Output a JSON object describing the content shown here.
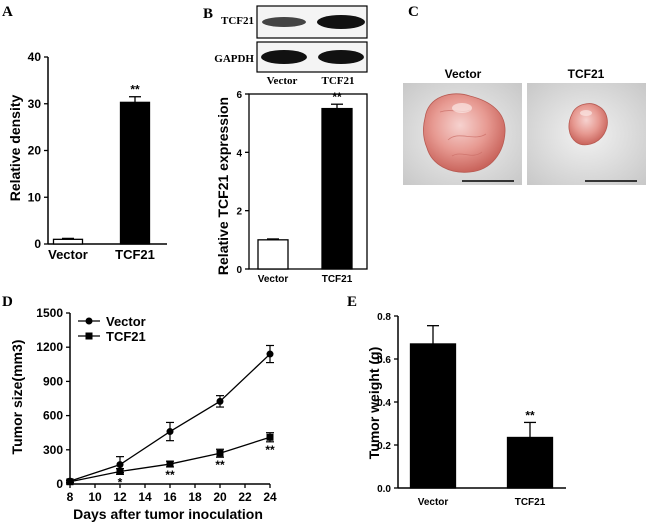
{
  "panels": {
    "A": {
      "letter": "A",
      "chart_data": {
        "type": "bar",
        "categories": [
          "Vector",
          "TCF21"
        ],
        "values": [
          1,
          30.3
        ],
        "errors": [
          0.2,
          1.2
        ],
        "fills": [
          "#ffffff",
          "#000000"
        ],
        "ylabel": "Relative density",
        "ylim": [
          0,
          40
        ],
        "yticks": [
          0,
          10,
          20,
          30,
          40
        ],
        "significance": [
          "",
          "**"
        ]
      }
    },
    "B": {
      "letter": "B",
      "blot_rows": [
        "TCF21",
        "GAPDH"
      ],
      "blot_lanes": [
        "Vector",
        "TCF21"
      ],
      "chart_data": {
        "type": "bar",
        "categories": [
          "Vector",
          "TCF21"
        ],
        "values": [
          1,
          5.5
        ],
        "errors": [
          0.03,
          0.15
        ],
        "fills": [
          "#ffffff",
          "#000000"
        ],
        "ylabel": "Relative TCF21 expression",
        "ylim": [
          0,
          6
        ],
        "yticks": [
          0,
          2,
          4,
          6
        ],
        "significance": [
          "",
          "**"
        ]
      }
    },
    "C": {
      "letter": "C",
      "photos": [
        "Vector",
        "TCF21"
      ]
    },
    "D": {
      "letter": "D",
      "chart_data": {
        "type": "line",
        "x": [
          8,
          12,
          16,
          20,
          24
        ],
        "series": [
          {
            "name": "Vector",
            "marker": "circle",
            "values": [
              25,
              170,
              460,
              725,
              1140
            ],
            "errors": [
              10,
              70,
              80,
              50,
              75
            ]
          },
          {
            "name": "TCF21",
            "marker": "square",
            "values": [
              20,
              110,
              175,
              270,
              410
            ],
            "errors": [
              8,
              25,
              25,
              35,
              40
            ]
          }
        ],
        "significance": {
          "x": [
            12,
            16,
            20,
            24
          ],
          "labels": [
            "*",
            "**",
            "**",
            "**"
          ]
        },
        "xlabel": "Days after tumor inoculation",
        "ylabel": "Tumor size(mm3)",
        "xlim": [
          8,
          24
        ],
        "ylim": [
          0,
          1500
        ],
        "xticks": [
          8,
          10,
          12,
          14,
          16,
          18,
          20,
          22,
          24
        ],
        "yticks": [
          0,
          300,
          600,
          900,
          1200,
          1500
        ],
        "legend": "top-left"
      }
    },
    "E": {
      "letter": "E",
      "chart_data": {
        "type": "bar",
        "categories": [
          "Vector",
          "TCF21"
        ],
        "values": [
          0.67,
          0.235
        ],
        "errors": [
          0.085,
          0.07
        ],
        "fills": [
          "#000000",
          "#000000"
        ],
        "ylabel": "Tumor weight (g)",
        "ylim": [
          0,
          0.8
        ],
        "yticks": [
          "0.0",
          "0.2",
          "0.4",
          "0.6",
          "0.8"
        ],
        "significance": [
          "",
          "**"
        ]
      }
    }
  }
}
